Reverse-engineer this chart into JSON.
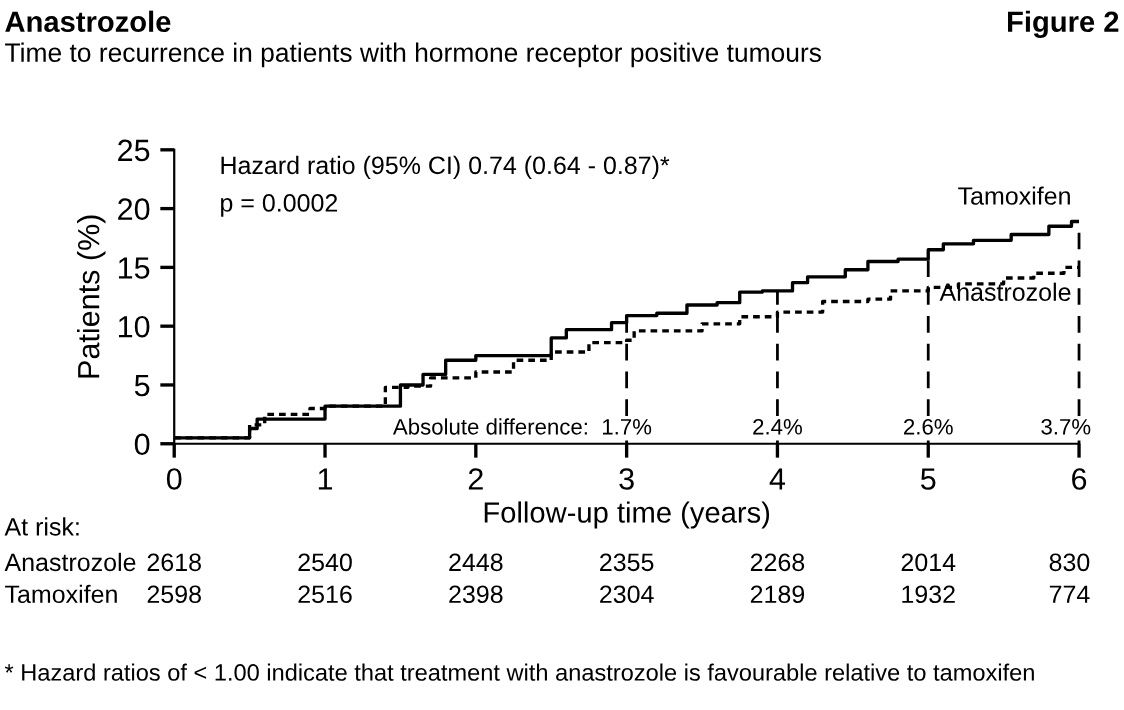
{
  "chart_data": {
    "type": "step",
    "title": "Anastrozole",
    "subtitle": "Time to recurrence in patients with hormone receptor positive tumours",
    "xlabel": "Follow-up time (years)",
    "ylabel": "Patients (%)",
    "xlim": [
      0,
      6
    ],
    "xticks": [
      0,
      1,
      2,
      3,
      4,
      5,
      6
    ],
    "ylim": [
      0,
      25
    ],
    "yticks": [
      0,
      5,
      10,
      15,
      20,
      25
    ],
    "grid": false,
    "legend": false,
    "marker": "none",
    "series": [
      {
        "name": "Tamoxifen",
        "color": "#000000",
        "line_style": "solid",
        "x": [
          0,
          0.5,
          0.55,
          0.75,
          1,
          1.5,
          1.65,
          1.8,
          2,
          2.5,
          2.6,
          2.9,
          3,
          3.2,
          3.4,
          3.6,
          3.75,
          3.9,
          4.1,
          4.2,
          4.45,
          4.6,
          4.8,
          5,
          5.1,
          5.3,
          5.55,
          5.7,
          5.8,
          5.95,
          6
        ],
        "values": [
          0.5,
          1.3,
          2.1,
          2.1,
          3.2,
          5.0,
          5.9,
          7.1,
          7.5,
          9.0,
          9.7,
          10.3,
          10.9,
          11.1,
          11.8,
          12.0,
          12.9,
          13.0,
          13.7,
          14.2,
          14.8,
          15.5,
          15.7,
          16.5,
          17.0,
          17.3,
          17.8,
          17.8,
          18.5,
          18.9,
          18.9
        ]
      },
      {
        "name": "Anastrozole",
        "color": "#000000",
        "line_style": "dotted",
        "x": [
          0,
          0.5,
          0.6,
          0.9,
          1,
          1.4,
          1.55,
          1.7,
          2,
          2.25,
          2.5,
          2.75,
          3,
          3.05,
          3.5,
          3.75,
          4,
          4.3,
          4.6,
          4.75,
          5,
          5.2,
          5.5,
          5.7,
          5.9,
          6
        ],
        "values": [
          0.5,
          1.6,
          2.5,
          3.0,
          3.2,
          4.8,
          4.9,
          5.6,
          6.1,
          7.1,
          7.8,
          8.6,
          8.8,
          9.6,
          10.2,
          10.8,
          11.2,
          12.1,
          12.3,
          13.0,
          13.3,
          13.6,
          14.1,
          14.5,
          15.0,
          15.0
        ]
      }
    ],
    "ref_lines": [
      {
        "axis": "x",
        "value": 3,
        "line_style": "dashed",
        "color": "#000000"
      },
      {
        "axis": "x",
        "value": 4,
        "line_style": "dashed",
        "color": "#000000"
      },
      {
        "axis": "x",
        "value": 5,
        "line_style": "dashed",
        "color": "#000000"
      },
      {
        "axis": "x",
        "value": 6,
        "line_style": "dashed",
        "color": "#000000"
      }
    ],
    "annotations": [
      "Figure 2",
      "Hazard ratio (95% CI) 0.74 (0.64 - 0.87)*",
      "p = 0.0002",
      "Absolute difference:",
      "At risk:",
      "Anastrozole 2618 2540 2448 2355 2268 2014 830",
      "Tamoxifen 2598 2516 2398 2304 2189 1932 774",
      "* Hazard ratios of < 1.00 indicate that treatment with anastrozole is favourable relative to tamoxifen",
      {
        "text": "1.7%",
        "x": 3,
        "y": 0
      },
      {
        "text": "2.4%",
        "x": 4,
        "y": 0
      },
      {
        "text": "2.6%",
        "x": 5,
        "y": 0
      },
      {
        "text": "3.7%",
        "x": 6,
        "y": 0
      }
    ]
  }
}
